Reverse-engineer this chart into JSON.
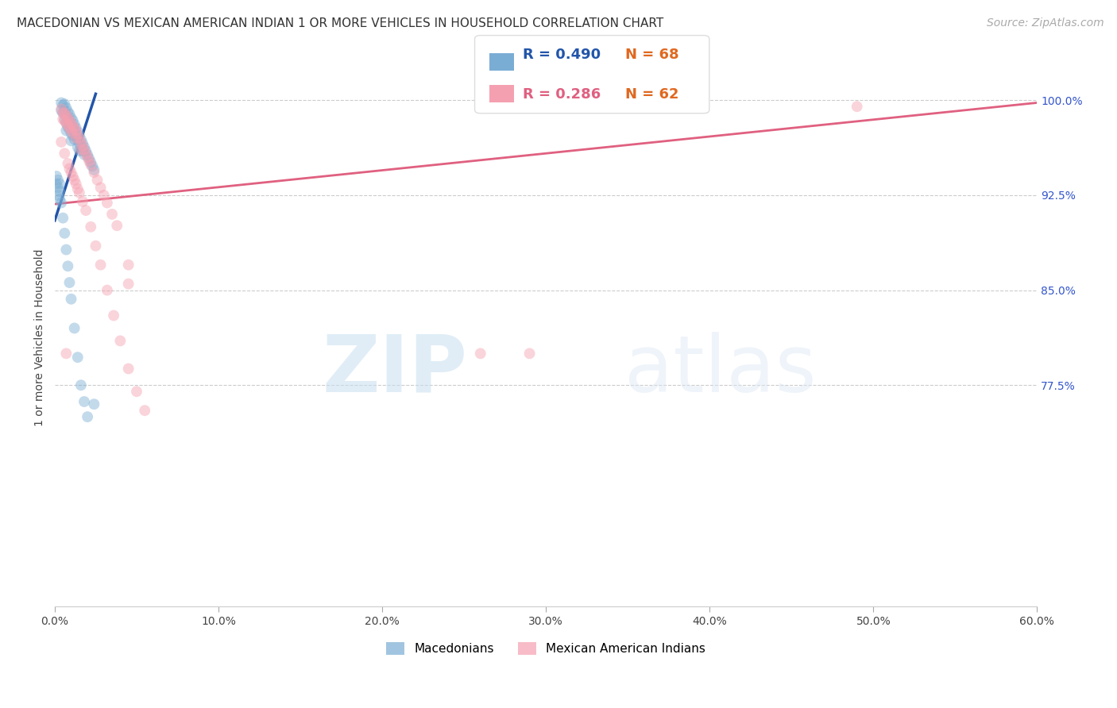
{
  "title": "MACEDONIAN VS MEXICAN AMERICAN INDIAN 1 OR MORE VEHICLES IN HOUSEHOLD CORRELATION CHART",
  "source": "Source: ZipAtlas.com",
  "ylabel": "1 or more Vehicles in Household",
  "x_min": 0.0,
  "x_max": 0.6,
  "y_min": 0.6,
  "y_max": 1.025,
  "x_ticks": [
    0.0,
    0.1,
    0.2,
    0.3,
    0.4,
    0.5,
    0.6
  ],
  "x_tick_labels": [
    "0.0%",
    "10.0%",
    "20.0%",
    "30.0%",
    "40.0%",
    "50.0%",
    "60.0%"
  ],
  "y_ticks": [
    0.775,
    0.85,
    0.925,
    1.0
  ],
  "y_tick_labels": [
    "77.5%",
    "85.0%",
    "92.5%",
    "100.0%"
  ],
  "grid_color": "#cccccc",
  "background_color": "#ffffff",
  "blue_color": "#7aadd4",
  "blue_line_color": "#2255aa",
  "pink_color": "#f5a0b0",
  "pink_line_color": "#e06080",
  "legend_blue_R": "R = 0.490",
  "legend_blue_N": "N = 68",
  "legend_pink_R": "R = 0.286",
  "legend_pink_N": "N = 62",
  "legend_label_blue": "Macedonians",
  "legend_label_pink": "Mexican American Indians",
  "watermark_zip": "ZIP",
  "watermark_atlas": "atlas",
  "blue_x": [
    0.004,
    0.004,
    0.005,
    0.005,
    0.006,
    0.006,
    0.006,
    0.007,
    0.007,
    0.007,
    0.007,
    0.008,
    0.008,
    0.008,
    0.009,
    0.009,
    0.009,
    0.01,
    0.01,
    0.01,
    0.01,
    0.011,
    0.011,
    0.011,
    0.012,
    0.012,
    0.012,
    0.013,
    0.013,
    0.014,
    0.014,
    0.014,
    0.015,
    0.015,
    0.015,
    0.016,
    0.016,
    0.017,
    0.017,
    0.018,
    0.018,
    0.019,
    0.02,
    0.021,
    0.022,
    0.023,
    0.024,
    0.001,
    0.001,
    0.002,
    0.002,
    0.002,
    0.003,
    0.003,
    0.003,
    0.004,
    0.005,
    0.006,
    0.007,
    0.008,
    0.009,
    0.01,
    0.012,
    0.014,
    0.016,
    0.018,
    0.02,
    0.024
  ],
  "blue_y": [
    0.998,
    0.992,
    0.996,
    0.99,
    0.997,
    0.991,
    0.985,
    0.994,
    0.988,
    0.982,
    0.976,
    0.991,
    0.985,
    0.979,
    0.989,
    0.983,
    0.977,
    0.986,
    0.98,
    0.974,
    0.968,
    0.984,
    0.978,
    0.972,
    0.981,
    0.975,
    0.969,
    0.978,
    0.972,
    0.975,
    0.969,
    0.963,
    0.972,
    0.966,
    0.96,
    0.969,
    0.963,
    0.966,
    0.96,
    0.963,
    0.957,
    0.96,
    0.957,
    0.954,
    0.951,
    0.948,
    0.945,
    0.94,
    0.934,
    0.937,
    0.931,
    0.925,
    0.934,
    0.928,
    0.922,
    0.919,
    0.907,
    0.895,
    0.882,
    0.869,
    0.856,
    0.843,
    0.82,
    0.797,
    0.775,
    0.762,
    0.75,
    0.76
  ],
  "pink_x": [
    0.004,
    0.005,
    0.005,
    0.006,
    0.006,
    0.007,
    0.007,
    0.008,
    0.008,
    0.009,
    0.009,
    0.01,
    0.01,
    0.011,
    0.011,
    0.012,
    0.013,
    0.013,
    0.014,
    0.015,
    0.016,
    0.016,
    0.017,
    0.018,
    0.019,
    0.02,
    0.021,
    0.022,
    0.024,
    0.026,
    0.028,
    0.03,
    0.032,
    0.035,
    0.038,
    0.004,
    0.006,
    0.008,
    0.009,
    0.01,
    0.011,
    0.012,
    0.013,
    0.014,
    0.015,
    0.017,
    0.019,
    0.022,
    0.025,
    0.028,
    0.032,
    0.036,
    0.04,
    0.045,
    0.05,
    0.055,
    0.045,
    0.045,
    0.29,
    0.49,
    0.007,
    0.26
  ],
  "pink_y": [
    0.993,
    0.99,
    0.985,
    0.99,
    0.984,
    0.988,
    0.982,
    0.986,
    0.98,
    0.984,
    0.978,
    0.982,
    0.976,
    0.98,
    0.974,
    0.978,
    0.976,
    0.97,
    0.973,
    0.97,
    0.967,
    0.961,
    0.964,
    0.961,
    0.958,
    0.955,
    0.952,
    0.949,
    0.943,
    0.937,
    0.931,
    0.925,
    0.919,
    0.91,
    0.901,
    0.967,
    0.958,
    0.95,
    0.946,
    0.943,
    0.94,
    0.937,
    0.934,
    0.93,
    0.927,
    0.92,
    0.913,
    0.9,
    0.885,
    0.87,
    0.85,
    0.83,
    0.81,
    0.788,
    0.77,
    0.755,
    0.87,
    0.855,
    0.8,
    0.995,
    0.8,
    0.8
  ],
  "blue_line_x": [
    0.0,
    0.025
  ],
  "blue_line_y": [
    0.905,
    1.005
  ],
  "pink_line_x": [
    0.0,
    0.6
  ],
  "pink_line_y": [
    0.918,
    0.998
  ],
  "title_fontsize": 11,
  "axis_label_fontsize": 10,
  "tick_fontsize": 10,
  "legend_fontsize": 13,
  "source_fontsize": 10,
  "marker_size": 100,
  "marker_alpha": 0.45,
  "line_width": 2.0
}
